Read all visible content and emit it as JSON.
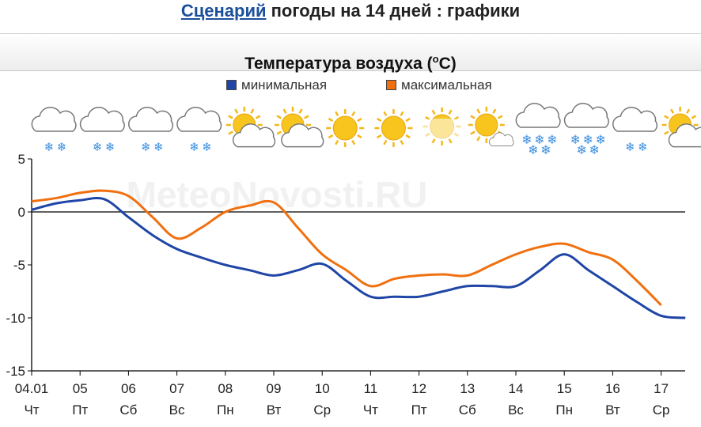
{
  "page": {
    "link_text": "Сценарий",
    "title_rest": "погоды на 14 дней : графики"
  },
  "chart_header": {
    "title_pre": "Температура воздуха (",
    "title_sup": "o",
    "title_post": "C)"
  },
  "watermark": "MeteoNovosti.RU",
  "chart_data": {
    "type": "line",
    "title": "Температура воздуха (oC)",
    "xlabel": "",
    "ylabel": "",
    "ylim": [
      -15,
      5
    ],
    "yticks": [
      5,
      0,
      -5,
      -10,
      -15
    ],
    "categories": [
      "04.01",
      "05",
      "06",
      "07",
      "08",
      "09",
      "10",
      "11",
      "12",
      "13",
      "14",
      "15",
      "16",
      "17"
    ],
    "weekdays": [
      "Чт",
      "Пт",
      "Сб",
      "Вс",
      "Пн",
      "Вт",
      "Ср",
      "Чт",
      "Пт",
      "Сб",
      "Вс",
      "Пн",
      "Вт",
      "Ср"
    ],
    "x": [
      0,
      0.5,
      1,
      1.5,
      2,
      2.5,
      3,
      3.5,
      4,
      4.5,
      5,
      5.5,
      6,
      6.5,
      7,
      7.5,
      8,
      8.5,
      9,
      9.5,
      10,
      10.5,
      11,
      11.5,
      12,
      12.5,
      13,
      13.5,
      13.5
    ],
    "series": [
      {
        "name": "минимальная",
        "color": "#1f45a6",
        "points": [
          [
            0,
            0.2
          ],
          [
            0.5,
            0.8
          ],
          [
            1,
            1.1
          ],
          [
            1.5,
            1.2
          ],
          [
            2,
            -0.5
          ],
          [
            2.5,
            -2.2
          ],
          [
            3,
            -3.5
          ],
          [
            3.5,
            -4.3
          ],
          [
            4,
            -5
          ],
          [
            4.5,
            -5.5
          ],
          [
            5,
            -6
          ],
          [
            5.5,
            -5.5
          ],
          [
            6,
            -4.9
          ],
          [
            6.5,
            -6.5
          ],
          [
            7,
            -8
          ],
          [
            7.5,
            -8
          ],
          [
            8,
            -8
          ],
          [
            8.5,
            -7.5
          ],
          [
            9,
            -7
          ],
          [
            9.5,
            -7
          ],
          [
            10,
            -7
          ],
          [
            10.5,
            -5.5
          ],
          [
            11,
            -4
          ],
          [
            11.5,
            -5.5
          ],
          [
            12,
            -7
          ],
          [
            12.5,
            -8.5
          ],
          [
            13,
            -9.8
          ],
          [
            13.5,
            -10
          ]
        ]
      },
      {
        "name": "максимальная",
        "color": "#f07010",
        "points": [
          [
            0,
            1
          ],
          [
            0.5,
            1.3
          ],
          [
            1,
            1.8
          ],
          [
            1.5,
            2
          ],
          [
            2,
            1.5
          ],
          [
            2.5,
            -0.5
          ],
          [
            3,
            -2.5
          ],
          [
            3.5,
            -1.5
          ],
          [
            4,
            0
          ],
          [
            4.5,
            0.6
          ],
          [
            5,
            0.9
          ],
          [
            5.5,
            -1.5
          ],
          [
            6,
            -4
          ],
          [
            6.5,
            -5.5
          ],
          [
            7,
            -7
          ],
          [
            7.5,
            -6.3
          ],
          [
            8,
            -6
          ],
          [
            8.5,
            -5.9
          ],
          [
            9,
            -6
          ],
          [
            9.5,
            -5
          ],
          [
            10,
            -4
          ],
          [
            10.5,
            -3.3
          ],
          [
            11,
            -3
          ],
          [
            11.5,
            -3.8
          ],
          [
            12,
            -4.5
          ],
          [
            12.5,
            -6.5
          ],
          [
            13,
            -8.8
          ]
        ]
      }
    ],
    "legend_position": "top-center",
    "grid": false,
    "zero_line": true
  },
  "weather_icons": [
    "cloud-snow-icon",
    "cloud-snow-icon",
    "cloud-snow-icon",
    "cloud-snow-icon",
    "sun-cloud-icon",
    "sun-cloud-icon",
    "sun-icon",
    "sun-icon",
    "sun-haze-icon",
    "sun-small-cloud-icon",
    "cloud-heavy-snow-icon",
    "cloud-heavy-snow-icon",
    "cloud-snow-icon",
    "sun-cloud-icon"
  ],
  "colors": {
    "axis": "#000000",
    "min": "#1f45a6",
    "max": "#f07010",
    "link": "#1a4f9c"
  }
}
